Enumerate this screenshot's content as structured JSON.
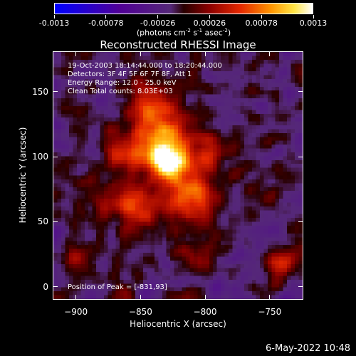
{
  "colorbar": {
    "ticks": [
      "-0.0013",
      "-0.00078",
      "-0.00026",
      "0.00026",
      "0.00078",
      "0.0013"
    ],
    "units_text": "(photons cm",
    "units_exp1": "-2",
    "units_mid": " s",
    "units_exp2": "-1",
    "units_mid2": " asec",
    "units_exp3": "-2",
    "units_end": ")",
    "range": [
      -0.0013,
      0.0013
    ]
  },
  "title": "Reconstructed RHESSI Image",
  "info": {
    "line1": "19-Oct-2003 18:14:44.000 to 18:20:44.000",
    "line2": "Detectors: 3F 4F 5F 6F 7F 8F, Att 1",
    "line3": "Energy Range: 12.0 - 25.0 keV",
    "line4": "Clean     Total counts: 8.03E+03"
  },
  "peak_label": "Position of Peak = [-831,93]",
  "chart_data": {
    "type": "heatmap",
    "title": "Reconstructed RHESSI Image",
    "xlabel": "Heliocentric X (arcsec)",
    "ylabel": "Heliocentric Y (arcsec)",
    "xlim": [
      -918,
      -724
    ],
    "ylim": [
      -10,
      181
    ],
    "x_ticks": [
      "-900",
      "-850",
      "-800",
      "-750"
    ],
    "y_ticks": [
      "0",
      "50",
      "100",
      "150"
    ],
    "colorscale": "red-temperature with negative blue-purple",
    "peak": {
      "x": -831,
      "y": 93
    },
    "grid": false
  },
  "date_stamp": "6-May-2022 10:48"
}
